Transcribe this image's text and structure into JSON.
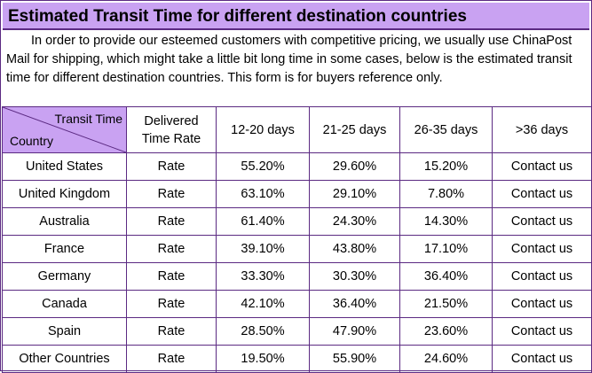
{
  "title": "Estimated Transit Time for different destination countries",
  "intro": "In order to provide our esteemed customers with competitive pricing, we usually use ChinaPost Mail for shipping, which might take a little bit long time in some cases, below is the estimated transit time for different destination countries. This form is for buyers reference only.",
  "table": {
    "corner_top": "Transit Time",
    "corner_bottom": "Country",
    "col_delivered_line1": "Delivered",
    "col_delivered_line2": "Time Rate",
    "col_1": "12-20 days",
    "col_2": "21-25 days",
    "col_3": "26-35 days",
    "col_4": ">36 days",
    "rows": [
      {
        "country": "United States",
        "rate": "Rate",
        "c1": "55.20%",
        "c2": "29.60%",
        "c3": "15.20%",
        "c4": "Contact us"
      },
      {
        "country": "United Kingdom",
        "rate": "Rate",
        "c1": "63.10%",
        "c2": "29.10%",
        "c3": "7.80%",
        "c4": "Contact us"
      },
      {
        "country": "Australia",
        "rate": "Rate",
        "c1": "61.40%",
        "c2": "24.30%",
        "c3": "14.30%",
        "c4": "Contact us"
      },
      {
        "country": "France",
        "rate": "Rate",
        "c1": "39.10%",
        "c2": "43.80%",
        "c3": "17.10%",
        "c4": "Contact us"
      },
      {
        "country": "Germany",
        "rate": "Rate",
        "c1": "33.30%",
        "c2": "30.30%",
        "c3": "36.40%",
        "c4": "Contact us"
      },
      {
        "country": "Canada",
        "rate": "Rate",
        "c1": "42.10%",
        "c2": "36.40%",
        "c3": "21.50%",
        "c4": "Contact us"
      },
      {
        "country": "Spain",
        "rate": "Rate",
        "c1": "28.50%",
        "c2": "47.90%",
        "c3": "23.60%",
        "c4": "Contact us"
      },
      {
        "country": "Other Countries",
        "rate": "Rate",
        "c1": "19.50%",
        "c2": "55.90%",
        "c3": "24.60%",
        "c4": "Contact us"
      }
    ]
  },
  "colors": {
    "header_purple": "#c9a2f2",
    "border": "#5b2a82",
    "contact_red": "#cc1010"
  }
}
